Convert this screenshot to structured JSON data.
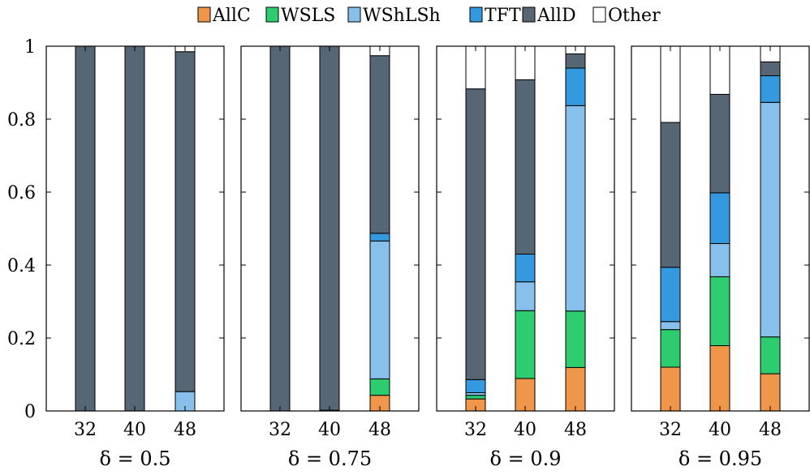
{
  "chart_data": {
    "type": "bar",
    "stacked": true,
    "ylim": [
      0,
      1
    ],
    "yticks": [
      0,
      0.2,
      0.4,
      0.6,
      0.8,
      1
    ],
    "ytick_labels": [
      "0",
      "0.2",
      "0.4",
      "0.6",
      "0.8",
      "1"
    ],
    "grid": false,
    "legend": {
      "placement": "top-center",
      "entries": [
        {
          "name": "AllC",
          "color": "#f0964b"
        },
        {
          "name": "WSLS",
          "color": "#2dcc6e"
        },
        {
          "name": "WShLSh",
          "color": "#87c1eb"
        },
        {
          "name": "TFT",
          "color": "#3499de"
        },
        {
          "name": "AllD",
          "color": "#566675"
        },
        {
          "name": "Other",
          "color": "#ffffff"
        }
      ]
    },
    "panels": [
      {
        "title": "δ = 0.5",
        "categories": [
          "32",
          "40",
          "48"
        ],
        "series": [
          {
            "name": "AllC",
            "values": [
              0,
              0,
              0
            ]
          },
          {
            "name": "WSLS",
            "values": [
              0,
              0,
              0
            ]
          },
          {
            "name": "WShLSh",
            "values": [
              0,
              0,
              0.053
            ]
          },
          {
            "name": "TFT",
            "values": [
              0,
              0,
              0
            ]
          },
          {
            "name": "AllD",
            "values": [
              1.0,
              1.0,
              0.932
            ]
          },
          {
            "name": "Other",
            "values": [
              0,
              0,
              0.015
            ]
          }
        ]
      },
      {
        "title": "δ = 0.75",
        "categories": [
          "32",
          "40",
          "48"
        ],
        "series": [
          {
            "name": "AllC",
            "values": [
              0,
              0,
              0.043
            ]
          },
          {
            "name": "WSLS",
            "values": [
              0,
              0.002,
              0.045
            ]
          },
          {
            "name": "WShLSh",
            "values": [
              0,
              0,
              0.378
            ]
          },
          {
            "name": "TFT",
            "values": [
              0,
              0,
              0.021
            ]
          },
          {
            "name": "AllD",
            "values": [
              1.0,
              0.998,
              0.487
            ]
          },
          {
            "name": "Other",
            "values": [
              0,
              0,
              0.026
            ]
          }
        ]
      },
      {
        "title": "δ = 0.9",
        "categories": [
          "32",
          "40",
          "48"
        ],
        "series": [
          {
            "name": "AllC",
            "values": [
              0.033,
              0.089,
              0.119
            ]
          },
          {
            "name": "WSLS",
            "values": [
              0.01,
              0.186,
              0.155
            ]
          },
          {
            "name": "WShLSh",
            "values": [
              0.007,
              0.079,
              0.563
            ]
          },
          {
            "name": "TFT",
            "values": [
              0.036,
              0.076,
              0.103
            ]
          },
          {
            "name": "AllD",
            "values": [
              0.797,
              0.478,
              0.039
            ]
          },
          {
            "name": "Other",
            "values": [
              0.117,
              0.092,
              0.021
            ]
          }
        ]
      },
      {
        "title": "δ = 0.95",
        "categories": [
          "32",
          "40",
          "48"
        ],
        "series": [
          {
            "name": "AllC",
            "values": [
              0.12,
              0.179,
              0.102
            ]
          },
          {
            "name": "WSLS",
            "values": [
              0.103,
              0.189,
              0.101
            ]
          },
          {
            "name": "WShLSh",
            "values": [
              0.022,
              0.091,
              0.643
            ]
          },
          {
            "name": "TFT",
            "values": [
              0.149,
              0.139,
              0.073
            ]
          },
          {
            "name": "AllD",
            "values": [
              0.397,
              0.27,
              0.038
            ]
          },
          {
            "name": "Other",
            "values": [
              0.209,
              0.132,
              0.043
            ]
          }
        ]
      }
    ]
  }
}
